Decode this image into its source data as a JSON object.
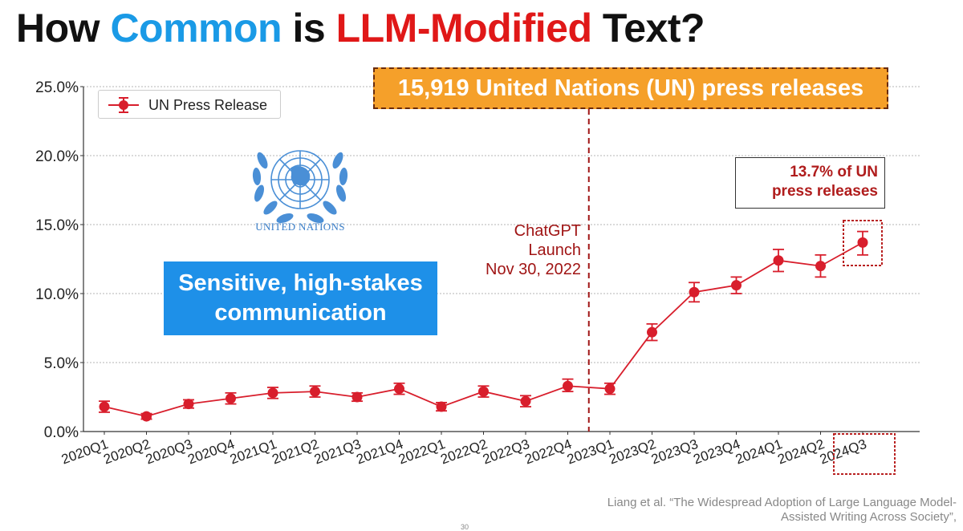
{
  "title": {
    "part1": "How ",
    "part2": "Common",
    "part3": " is ",
    "part4": "LLM-Modified",
    "part5": " Text?"
  },
  "colors": {
    "title_text": "#111111",
    "title_common": "#1a9ae6",
    "title_llm": "#e01818",
    "series_red": "#d81e2c",
    "banner_orange": "#f5a02a",
    "callout_blue": "#1e90e8",
    "annotation_dark_red": "#a01515"
  },
  "banner": {
    "text": "15,919 United Nations (UN) press releases"
  },
  "callout": {
    "line1": "Sensitive, high-stakes",
    "line2": "communication"
  },
  "un_logo": {
    "icon": "un-emblem-icon",
    "label": "UNITED NATIONS"
  },
  "result_box": {
    "line1": "13.7% of UN",
    "line2": "press releases"
  },
  "launch_annotation": {
    "line1": "ChatGPT",
    "line2": "Launch",
    "line3": "Nov 30, 2022"
  },
  "citation": {
    "line1": "Liang et al. “The Widespread Adoption of Large Language Model-",
    "line2": "Assisted Writing Across Society”,"
  },
  "slide_number": "30",
  "chart_data": {
    "type": "line",
    "title": "",
    "xlabel": "",
    "ylabel": "",
    "ylim": [
      0,
      25
    ],
    "yticks": [
      0,
      5,
      10,
      15,
      20,
      25
    ],
    "ytick_labels": [
      "0.0%",
      "5.0%",
      "10.0%",
      "15.0%",
      "20.0%",
      "25.0%"
    ],
    "grid": "horizontal",
    "legend_position": "top-left",
    "categories": [
      "2020Q1",
      "2020Q2",
      "2020Q3",
      "2020Q4",
      "2021Q1",
      "2021Q2",
      "2021Q3",
      "2021Q4",
      "2022Q1",
      "2022Q2",
      "2022Q3",
      "2022Q4",
      "2023Q1",
      "2023Q2",
      "2023Q3",
      "2023Q4",
      "2024Q1",
      "2024Q2",
      "2024Q3"
    ],
    "series": [
      {
        "name": "UN Press Release",
        "values": [
          1.8,
          1.1,
          2.0,
          2.4,
          2.8,
          2.9,
          2.5,
          3.1,
          1.8,
          2.9,
          2.2,
          3.3,
          3.1,
          7.2,
          10.1,
          10.6,
          12.4,
          12.0,
          13.7
        ],
        "error_low": [
          1.4,
          0.9,
          1.7,
          2.0,
          2.4,
          2.5,
          2.2,
          2.7,
          1.5,
          2.5,
          1.8,
          2.9,
          2.7,
          6.6,
          9.4,
          10.0,
          11.6,
          11.2,
          12.8
        ],
        "error_high": [
          2.2,
          1.3,
          2.3,
          2.8,
          3.2,
          3.3,
          2.8,
          3.5,
          2.1,
          3.3,
          2.6,
          3.8,
          3.5,
          7.8,
          10.8,
          11.2,
          13.2,
          12.8,
          14.5
        ]
      }
    ],
    "vertical_marker": {
      "between": [
        "2022Q4",
        "2023Q1"
      ],
      "style": "dashed"
    },
    "highlighted_category": "2024Q3"
  }
}
